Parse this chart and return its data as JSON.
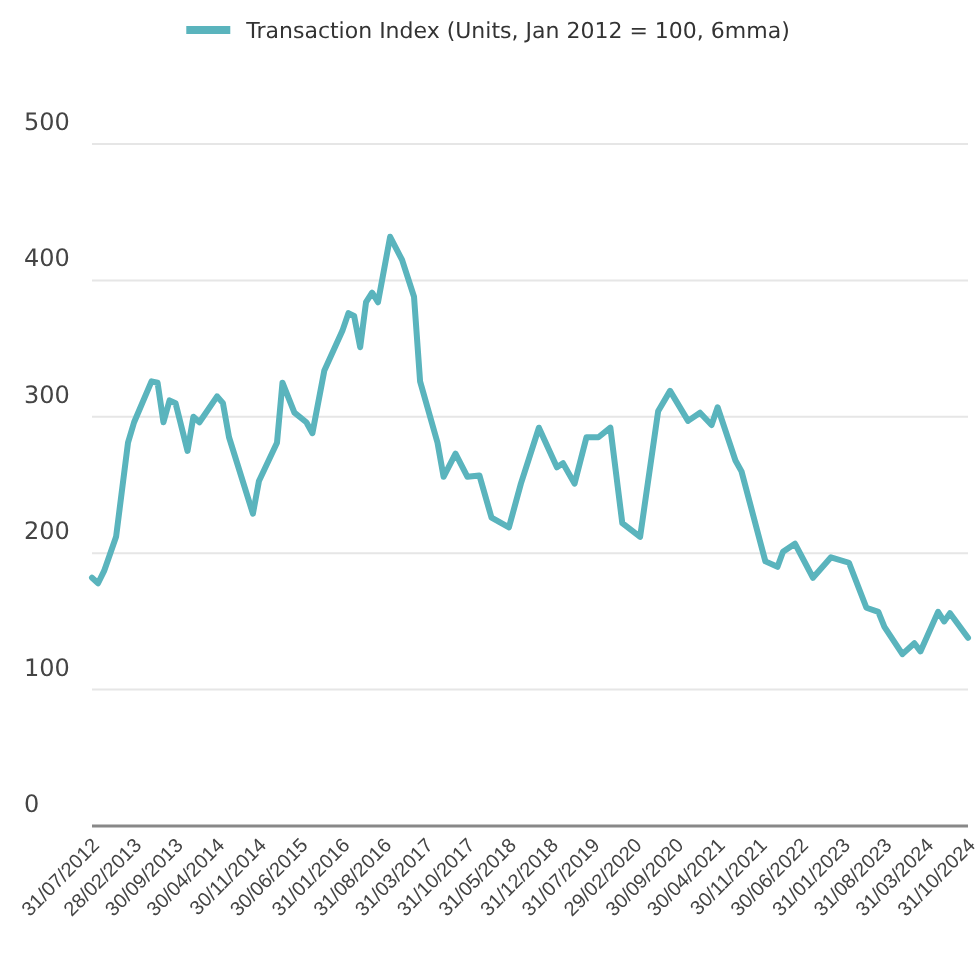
{
  "chart_data": {
    "type": "line",
    "legend": "top",
    "grid": "y",
    "xlim": [
      "2012-07",
      "2024-10"
    ],
    "xticks": [
      {
        "value": "2012-07",
        "label": "31/07/2012"
      },
      {
        "value": "2013-02",
        "label": "28/02/2013"
      },
      {
        "value": "2013-09",
        "label": "30/09/2013"
      },
      {
        "value": "2014-04",
        "label": "30/04/2014"
      },
      {
        "value": "2014-11",
        "label": "30/11/2014"
      },
      {
        "value": "2015-06",
        "label": "30/06/2015"
      },
      {
        "value": "2016-01",
        "label": "31/01/2016"
      },
      {
        "value": "2016-08",
        "label": "31/08/2016"
      },
      {
        "value": "2017-03",
        "label": "31/03/2017"
      },
      {
        "value": "2017-10",
        "label": "31/10/2017"
      },
      {
        "value": "2018-05",
        "label": "31/05/2018"
      },
      {
        "value": "2018-12",
        "label": "31/12/2018"
      },
      {
        "value": "2019-07",
        "label": "31/07/2019"
      },
      {
        "value": "2020-02",
        "label": "29/02/2020"
      },
      {
        "value": "2020-09",
        "label": "30/09/2020"
      },
      {
        "value": "2021-04",
        "label": "30/04/2021"
      },
      {
        "value": "2021-11",
        "label": "30/11/2021"
      },
      {
        "value": "2022-06",
        "label": "30/06/2022"
      },
      {
        "value": "2023-01",
        "label": "31/01/2023"
      },
      {
        "value": "2023-08",
        "label": "31/08/2023"
      },
      {
        "value": "2024-03",
        "label": "31/03/2024"
      },
      {
        "value": "2024-10",
        "label": "31/10/2024"
      }
    ],
    "ylim": [
      0,
      500
    ],
    "yticks": [
      0,
      100,
      200,
      300,
      400,
      500
    ],
    "x": [
      "2012-07",
      "2012-08",
      "2012-09",
      "2012-11",
      "2013-01",
      "2013-02",
      "2013-05",
      "2013-06",
      "2013-07",
      "2013-08",
      "2013-09",
      "2013-11",
      "2013-12",
      "2014-01",
      "2014-04",
      "2014-05",
      "2014-06",
      "2014-10",
      "2014-11",
      "2015-02",
      "2015-03",
      "2015-05",
      "2015-07",
      "2015-08",
      "2015-10",
      "2016-01",
      "2016-02",
      "2016-03",
      "2016-04",
      "2016-05",
      "2016-06",
      "2016-07",
      "2016-09",
      "2016-11",
      "2017-01",
      "2017-02",
      "2017-05",
      "2017-06",
      "2017-08",
      "2017-10",
      "2017-12",
      "2018-02",
      "2018-05",
      "2018-07",
      "2018-10",
      "2019-01",
      "2019-02",
      "2019-04",
      "2019-06",
      "2019-08",
      "2019-10",
      "2019-12",
      "2020-03",
      "2020-06",
      "2020-08",
      "2020-11",
      "2021-01",
      "2021-03",
      "2021-04",
      "2021-07",
      "2021-08",
      "2021-12",
      "2022-02",
      "2022-03",
      "2022-05",
      "2022-08",
      "2022-11",
      "2023-02",
      "2023-05",
      "2023-07",
      "2023-08",
      "2023-11",
      "2024-01",
      "2024-02",
      "2024-05",
      "2024-06",
      "2024-07",
      "2024-10"
    ],
    "series": [
      {
        "name": "Transaction Index (Units, Jan 2012 = 100, 6mma)",
        "color": "#5ab4bd",
        "values": [
          182,
          178,
          187,
          212,
          281,
          296,
          326,
          325,
          296,
          312,
          310,
          275,
          300,
          296,
          315,
          310,
          285,
          229,
          253,
          281,
          325,
          303,
          296,
          288,
          334,
          363,
          376,
          374,
          351,
          384,
          391,
          384,
          432,
          415,
          388,
          326,
          281,
          256,
          273,
          256,
          257,
          226,
          219,
          251,
          292,
          263,
          266,
          251,
          285,
          285,
          292,
          222,
          212,
          304,
          319,
          297,
          303,
          294,
          307,
          268,
          260,
          194,
          190,
          201,
          207,
          182,
          197,
          193,
          160,
          157,
          146,
          126,
          134,
          128,
          157,
          150,
          156,
          138
        ]
      }
    ]
  }
}
